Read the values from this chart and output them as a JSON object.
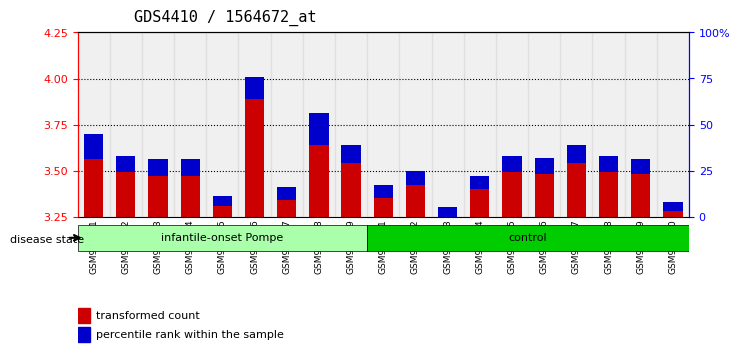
{
  "title": "GDS4410 / 1564672_at",
  "samples": [
    "GSM947471",
    "GSM947472",
    "GSM947473",
    "GSM947474",
    "GSM947475",
    "GSM947476",
    "GSM947477",
    "GSM947478",
    "GSM947479",
    "GSM947461",
    "GSM947462",
    "GSM947463",
    "GSM947464",
    "GSM947465",
    "GSM947466",
    "GSM947467",
    "GSM947468",
    "GSM947469",
    "GSM947470"
  ],
  "transformed_count": [
    3.7,
    3.58,
    3.56,
    3.56,
    3.36,
    4.01,
    3.41,
    3.81,
    3.64,
    3.42,
    3.5,
    3.3,
    3.47,
    3.58,
    3.57,
    3.64,
    3.58,
    3.56,
    3.33
  ],
  "percentile_rank": [
    0.14,
    0.09,
    0.09,
    0.09,
    0.05,
    0.12,
    0.07,
    0.17,
    0.1,
    0.07,
    0.08,
    0.06,
    0.07,
    0.09,
    0.09,
    0.1,
    0.09,
    0.08,
    0.05
  ],
  "ymin": 3.25,
  "ymax": 4.25,
  "yticks": [
    3.25,
    3.5,
    3.75,
    4.0,
    4.25
  ],
  "right_yticks": [
    0,
    25,
    50,
    75,
    100
  ],
  "right_ytick_labels": [
    "0",
    "25",
    "50",
    "75",
    "100%"
  ],
  "dotted_lines": [
    3.5,
    3.75,
    4.0
  ],
  "bar_color": "#cc0000",
  "percentile_color": "#0000cc",
  "background_color": "#ffffff",
  "plot_bg_color": "#ffffff",
  "group1_label": "infantile-onset Pompe",
  "group2_label": "control",
  "group1_color": "#aaffaa",
  "group2_color": "#00cc00",
  "group1_count": 9,
  "group2_count": 10,
  "disease_state_label": "disease state",
  "legend_red_label": "transformed count",
  "legend_blue_label": "percentile rank within the sample",
  "title_fontsize": 11,
  "axis_label_fontsize": 8,
  "tick_fontsize": 8,
  "bar_width": 0.6
}
